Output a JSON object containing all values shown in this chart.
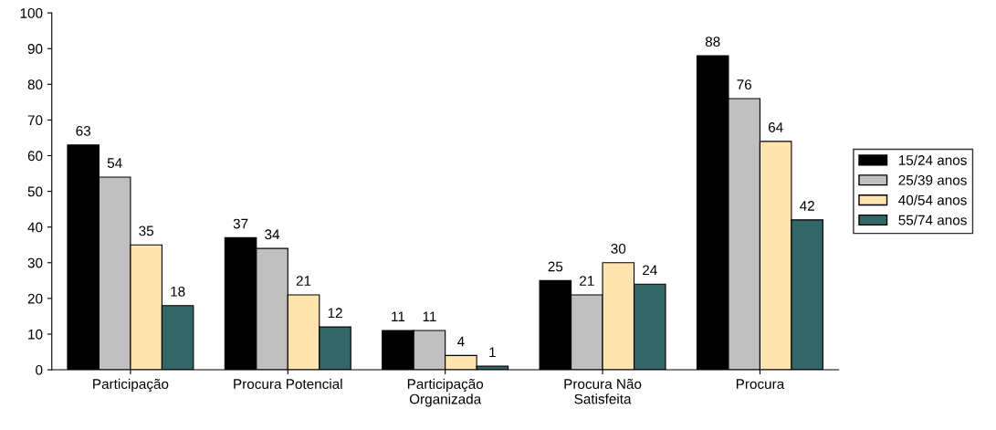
{
  "chart_data": {
    "type": "bar",
    "categories": [
      "Participação",
      "Procura Potencial",
      "Participação\nOrganizada",
      "Procura Não\nSatisfeita",
      "Procura"
    ],
    "series": [
      {
        "name": "15/24 anos",
        "color": "#000000",
        "values": [
          63,
          37,
          11,
          25,
          88
        ]
      },
      {
        "name": "25/39 anos",
        "color": "#c0c0c0",
        "values": [
          54,
          34,
          11,
          21,
          76
        ]
      },
      {
        "name": "40/54 anos",
        "color": "#ffe4b0",
        "values": [
          35,
          21,
          4,
          30,
          64
        ]
      },
      {
        "name": "55/74 anos",
        "color": "#336666",
        "values": [
          18,
          12,
          1,
          24,
          42
        ]
      }
    ],
    "ylim": [
      0,
      100
    ],
    "yticks": [
      0,
      10,
      20,
      30,
      40,
      50,
      60,
      70,
      80,
      90,
      100
    ],
    "grid": false,
    "legend": "right",
    "data_labels": true
  }
}
